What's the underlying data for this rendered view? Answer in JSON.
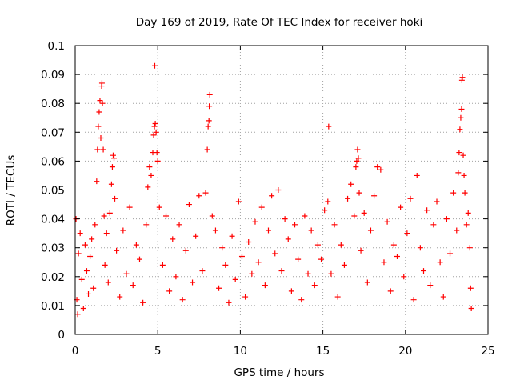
{
  "chart_data": {
    "type": "scatter",
    "title": "Day 169 of 2019, Rate Of TEC Index for receiver hoki",
    "xlabel": "GPS time / hours",
    "ylabel": "ROTI / TECUs",
    "xlim": [
      0,
      25
    ],
    "ylim": [
      0,
      0.1
    ],
    "xticks": [
      0,
      5,
      10,
      15,
      20,
      25
    ],
    "xtick_labels": [
      "0",
      "5",
      "10",
      "15",
      "20",
      "25"
    ],
    "yticks": [
      0,
      0.01,
      0.02,
      0.03,
      0.04,
      0.05,
      0.06,
      0.07,
      0.08,
      0.09,
      0.1
    ],
    "ytick_labels": [
      "0",
      "0.01",
      "0.02",
      "0.03",
      "0.04",
      "0.05",
      "0.06",
      "0.07",
      "0.08",
      "0.09",
      "0.1"
    ],
    "grid": true,
    "marker": "+",
    "color": "#ff0000",
    "series": [
      {
        "name": "ROTI",
        "points": [
          [
            0.1,
            0.012
          ],
          [
            0.2,
            0.028
          ],
          [
            0.3,
            0.035
          ],
          [
            0.4,
            0.019
          ],
          [
            0.5,
            0.009
          ],
          [
            0.6,
            0.031
          ],
          [
            0.7,
            0.022
          ],
          [
            0.8,
            0.014
          ],
          [
            0.9,
            0.027
          ],
          [
            1.0,
            0.033
          ],
          [
            1.1,
            0.016
          ],
          [
            1.2,
            0.038
          ],
          [
            1.3,
            0.053
          ],
          [
            1.35,
            0.064
          ],
          [
            1.4,
            0.072
          ],
          [
            1.45,
            0.077
          ],
          [
            1.5,
            0.081
          ],
          [
            1.55,
            0.068
          ],
          [
            1.6,
            0.086
          ],
          [
            1.62,
            0.087
          ],
          [
            1.65,
            0.08
          ],
          [
            1.7,
            0.064
          ],
          [
            1.75,
            0.041
          ],
          [
            1.8,
            0.024
          ],
          [
            1.9,
            0.035
          ],
          [
            2.0,
            0.018
          ],
          [
            2.1,
            0.042
          ],
          [
            2.2,
            0.052
          ],
          [
            2.25,
            0.058
          ],
          [
            2.3,
            0.062
          ],
          [
            2.35,
            0.061
          ],
          [
            2.4,
            0.047
          ],
          [
            2.5,
            0.029
          ],
          [
            2.7,
            0.013
          ],
          [
            2.9,
            0.036
          ],
          [
            3.1,
            0.021
          ],
          [
            3.3,
            0.044
          ],
          [
            3.5,
            0.017
          ],
          [
            3.7,
            0.031
          ],
          [
            3.9,
            0.026
          ],
          [
            4.1,
            0.011
          ],
          [
            4.3,
            0.038
          ],
          [
            4.4,
            0.051
          ],
          [
            4.5,
            0.058
          ],
          [
            4.6,
            0.055
          ],
          [
            4.7,
            0.063
          ],
          [
            4.75,
            0.069
          ],
          [
            4.8,
            0.072
          ],
          [
            4.85,
            0.073
          ],
          [
            4.9,
            0.07
          ],
          [
            4.82,
            0.093
          ],
          [
            4.95,
            0.063
          ],
          [
            5.0,
            0.06
          ],
          [
            5.1,
            0.044
          ],
          [
            5.3,
            0.024
          ],
          [
            5.5,
            0.041
          ],
          [
            5.7,
            0.015
          ],
          [
            5.9,
            0.033
          ],
          [
            6.1,
            0.02
          ],
          [
            6.3,
            0.038
          ],
          [
            6.5,
            0.012
          ],
          [
            6.7,
            0.029
          ],
          [
            6.9,
            0.045
          ],
          [
            7.1,
            0.018
          ],
          [
            7.3,
            0.034
          ],
          [
            7.5,
            0.048
          ],
          [
            7.7,
            0.022
          ],
          [
            7.9,
            0.049
          ],
          [
            8.0,
            0.064
          ],
          [
            8.05,
            0.072
          ],
          [
            8.1,
            0.074
          ],
          [
            8.12,
            0.079
          ],
          [
            8.15,
            0.083
          ],
          [
            8.3,
            0.041
          ],
          [
            8.5,
            0.036
          ],
          [
            8.7,
            0.016
          ],
          [
            8.9,
            0.03
          ],
          [
            9.1,
            0.024
          ],
          [
            9.3,
            0.011
          ],
          [
            9.5,
            0.034
          ],
          [
            9.7,
            0.019
          ],
          [
            9.9,
            0.046
          ],
          [
            10.1,
            0.027
          ],
          [
            10.3,
            0.013
          ],
          [
            10.5,
            0.032
          ],
          [
            10.7,
            0.021
          ],
          [
            10.9,
            0.039
          ],
          [
            11.1,
            0.025
          ],
          [
            11.3,
            0.044
          ],
          [
            11.5,
            0.017
          ],
          [
            11.7,
            0.036
          ],
          [
            11.9,
            0.048
          ],
          [
            12.1,
            0.028
          ],
          [
            12.3,
            0.05
          ],
          [
            12.5,
            0.022
          ],
          [
            12.7,
            0.04
          ],
          [
            12.9,
            0.033
          ],
          [
            13.1,
            0.015
          ],
          [
            13.3,
            0.038
          ],
          [
            13.5,
            0.026
          ],
          [
            13.7,
            0.012
          ],
          [
            13.9,
            0.041
          ],
          [
            14.1,
            0.021
          ],
          [
            14.3,
            0.036
          ],
          [
            14.5,
            0.017
          ],
          [
            14.7,
            0.031
          ],
          [
            14.9,
            0.026
          ],
          [
            15.1,
            0.043
          ],
          [
            15.3,
            0.046
          ],
          [
            15.35,
            0.072
          ],
          [
            15.5,
            0.021
          ],
          [
            15.7,
            0.038
          ],
          [
            15.9,
            0.013
          ],
          [
            16.1,
            0.031
          ],
          [
            16.3,
            0.024
          ],
          [
            16.5,
            0.047
          ],
          [
            16.7,
            0.052
          ],
          [
            16.9,
            0.041
          ],
          [
            17.0,
            0.058
          ],
          [
            17.05,
            0.06
          ],
          [
            17.1,
            0.064
          ],
          [
            17.15,
            0.061
          ],
          [
            17.2,
            0.049
          ],
          [
            17.3,
            0.029
          ],
          [
            17.5,
            0.042
          ],
          [
            17.7,
            0.018
          ],
          [
            17.9,
            0.036
          ],
          [
            18.1,
            0.048
          ],
          [
            18.3,
            0.058
          ],
          [
            18.5,
            0.057
          ],
          [
            18.7,
            0.025
          ],
          [
            18.9,
            0.039
          ],
          [
            19.1,
            0.015
          ],
          [
            19.3,
            0.031
          ],
          [
            19.5,
            0.027
          ],
          [
            19.7,
            0.044
          ],
          [
            19.9,
            0.02
          ],
          [
            20.1,
            0.035
          ],
          [
            20.3,
            0.047
          ],
          [
            20.5,
            0.012
          ],
          [
            20.7,
            0.055
          ],
          [
            20.9,
            0.03
          ],
          [
            21.1,
            0.022
          ],
          [
            21.3,
            0.043
          ],
          [
            21.5,
            0.017
          ],
          [
            21.7,
            0.038
          ],
          [
            21.9,
            0.046
          ],
          [
            22.1,
            0.025
          ],
          [
            22.3,
            0.013
          ],
          [
            22.5,
            0.04
          ],
          [
            22.7,
            0.028
          ],
          [
            22.9,
            0.049
          ],
          [
            23.1,
            0.036
          ],
          [
            23.2,
            0.056
          ],
          [
            23.25,
            0.063
          ],
          [
            23.3,
            0.071
          ],
          [
            23.35,
            0.075
          ],
          [
            23.4,
            0.078
          ],
          [
            23.42,
            0.088
          ],
          [
            23.45,
            0.089
          ],
          [
            23.5,
            0.062
          ],
          [
            23.55,
            0.055
          ],
          [
            23.6,
            0.049
          ],
          [
            23.7,
            0.038
          ],
          [
            23.8,
            0.042
          ],
          [
            23.9,
            0.03
          ],
          [
            23.95,
            0.016
          ],
          [
            0.05,
            0.04
          ],
          [
            0.15,
            0.007
          ],
          [
            23.99,
            0.009
          ]
        ]
      }
    ]
  }
}
